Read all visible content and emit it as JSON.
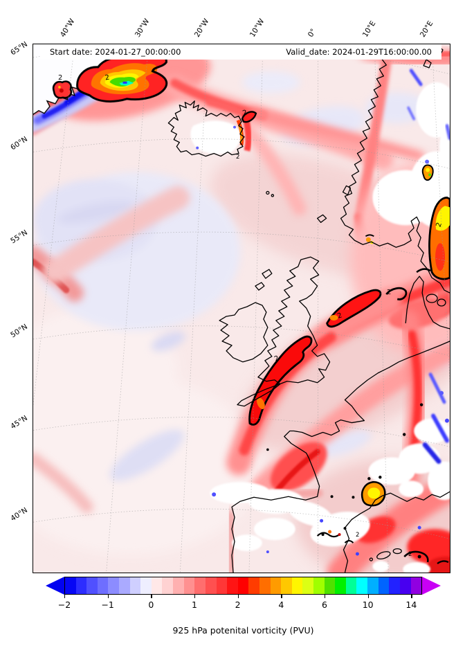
{
  "figure": {
    "background": "#ffffff"
  },
  "map": {
    "start_label": "Start date: 2024-01-27_00:00:00",
    "valid_label": "Valid_date: 2024-01-29T16:00:00.00",
    "contour_label": "2",
    "lon_labels": [
      "40°W",
      "30°W",
      "20°W",
      "10°W",
      "0°",
      "10°E",
      "20°E"
    ],
    "lat_labels": [
      "65°N",
      "60°N",
      "55°N",
      "50°N",
      "45°N",
      "40°N"
    ]
  },
  "colorbar": {
    "caption": "925 hPa potenital vorticity (PVU)",
    "tick_labels": [
      "−2",
      "−1",
      "0",
      "1",
      "2",
      "4",
      "6",
      "10",
      "14"
    ],
    "under_color": "#0202f0",
    "over_color": "#c800f5",
    "segment_colors": [
      "#0707f5",
      "#2d2dff",
      "#5050ff",
      "#6e6eff",
      "#8c8cff",
      "#aaaaff",
      "#cfcfff",
      "#eeeeff",
      "#ffe8e8",
      "#ffd2d2",
      "#ffb0b0",
      "#ff9090",
      "#ff6e6e",
      "#ff5050",
      "#ff3737",
      "#ff1414",
      "#ff0000",
      "#ff3c00",
      "#ff6e00",
      "#ff9b00",
      "#ffc800",
      "#fff500",
      "#dcff14",
      "#a0ff00",
      "#50e100",
      "#00f000",
      "#00ff96",
      "#00ffff",
      "#00afff",
      "#0064ff",
      "#2222ff",
      "#4800f0",
      "#9100e1"
    ]
  },
  "chart_data": {
    "type": "heatmap",
    "title": "925 hPa potenital vorticity (PVU)",
    "annotations": [
      "Start date: 2024-01-27_00:00:00",
      "Valid_date: 2024-01-29T16:00:00.00"
    ],
    "variable": "potential vorticity",
    "units": "PVU",
    "level_hpa": 925,
    "x": {
      "label": "longitude",
      "tick_values_deg": [
        -40,
        -30,
        -20,
        -10,
        0,
        10,
        20
      ]
    },
    "y": {
      "label": "latitude",
      "tick_values_deg": [
        65,
        60,
        55,
        50,
        45,
        40
      ]
    },
    "colorbar": {
      "tick_values": [
        -2,
        -1,
        0,
        1,
        2,
        4,
        6,
        10,
        14
      ],
      "extend": "both",
      "n_segments": 33,
      "orientation": "horizontal"
    },
    "overlay_contour_level_pvu": 2,
    "grid": true,
    "legend_position": "none",
    "features": [
      {
        "name": "intense PV maximum NW of Iceland, closed 2-PVU contour",
        "approx_lon": -31,
        "approx_lat": 64,
        "peak_pvu": 12
      },
      {
        "name": "small secondary PV blob off SE Greenland with 2-PVU contour",
        "approx_lon": -38,
        "approx_lat": 63.5,
        "peak_pvu": 4
      },
      {
        "name": "negative PV strip along SE Greenland coast",
        "approx_pvu": -2
      },
      {
        "name": "PV filament from Celtic Sea across Wales/England toward Skagerrak, 2-PVU contour",
        "approx_pvu": 2.5
      },
      {
        "name": "PV band along right edge near southern Baltic",
        "approx_pvu": 4
      },
      {
        "name": "PV spots over southern France and NE Spain",
        "approx_pvu": 5
      },
      {
        "name": "broad weak positive PV over North Atlantic",
        "approx_pvu": 0.5
      },
      {
        "name": "near-zero (white) PV over Iceland, southern Norway, Iberia and Alps",
        "approx_pvu": 0
      }
    ]
  }
}
